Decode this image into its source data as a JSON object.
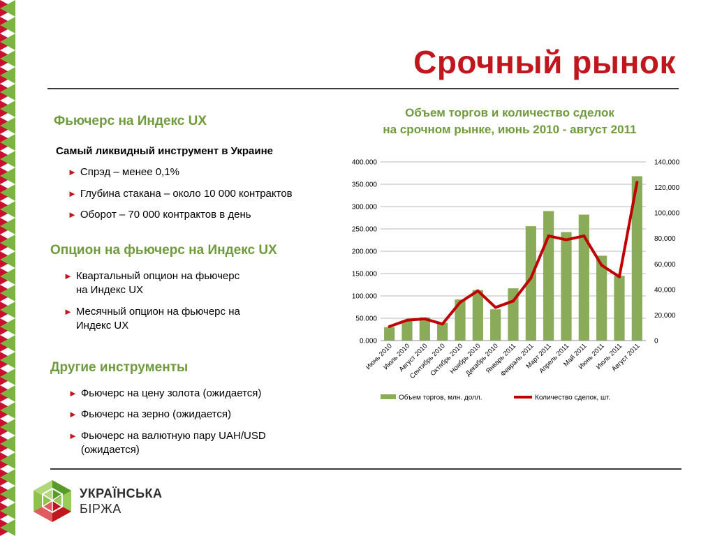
{
  "slide": {
    "title": "Срочный рынок"
  },
  "sections": [
    {
      "title": "Фьючерс на Индекс UX",
      "subheading": "Самый ликвидный инструмент в Украине",
      "bullets": [
        "Спрэд – менее 0,1%",
        "Глубина стакана – около 10 000 контрактов",
        "Оборот – 70 000 контрактов в день"
      ]
    },
    {
      "title": "Опцион на фьючерс на Индекс UX",
      "bullets": [
        [
          "Квартальный опцион на фьючерс",
          "на Индекс UX"
        ],
        [
          "Месячный опцион на фьючерс на",
          "Индекс UX"
        ]
      ]
    },
    {
      "title": "Другие инструменты",
      "bullets": [
        "Фьючерс на цену золота (ожидается)",
        "Фьючерс на зерно (ожидается)",
        [
          "Фьючерс на валютную пару UAH/USD",
          "(ожидается)"
        ]
      ]
    }
  ],
  "bullet_glyph": "►",
  "logo": {
    "line1": "УКРАЇНСЬКА",
    "line2": "БІРЖА"
  },
  "colors": {
    "title_red": "#c0161d",
    "accent_green": "#6f9b3c",
    "bar_green": "#8aab57",
    "line_red": "#c00000"
  },
  "chart_data": {
    "type": "bar",
    "title_lines": [
      "Объем торгов и количество сделок",
      "на срочном рынке, июнь 2010 - август 2011"
    ],
    "categories": [
      "Июнь 2010",
      "Июль 2010",
      "Август 2010",
      "Сентябрь 2010",
      "Октябрь 2010",
      "Ноябрь 2010",
      "Декабрь 2010",
      "Январь 2011",
      "Февраль 2011",
      "Март 2011",
      "Апрель 2011",
      "Май 2011",
      "Июнь 2011",
      "Июль 2011",
      "Август 2011"
    ],
    "series": [
      {
        "name": "Объем торгов, млн. долл.",
        "kind": "bar",
        "axis": "left",
        "values": [
          30000,
          45000,
          52000,
          40000,
          92000,
          113000,
          70000,
          117000,
          256000,
          290000,
          243000,
          282000,
          190000,
          145000,
          368000
        ]
      },
      {
        "name": "Количество сделок, шт.",
        "kind": "line",
        "axis": "right",
        "values": [
          11000,
          16000,
          17000,
          13000,
          30000,
          39000,
          26000,
          31000,
          49000,
          82000,
          79000,
          82000,
          59000,
          50000,
          124000
        ]
      }
    ],
    "y_left": {
      "min": 0,
      "max": 400000,
      "ticks": [
        "0.000",
        "50.000",
        "100.000",
        "150.000",
        "200.000",
        "250.000",
        "300.000",
        "350.000",
        "400.000"
      ]
    },
    "y_right": {
      "min": 0,
      "max": 140000,
      "ticks": [
        "0",
        "20,000",
        "40,000",
        "60,000",
        "80,000",
        "100,000",
        "120,000",
        "140,000"
      ]
    },
    "grid": true,
    "legend_position": "bottom"
  }
}
